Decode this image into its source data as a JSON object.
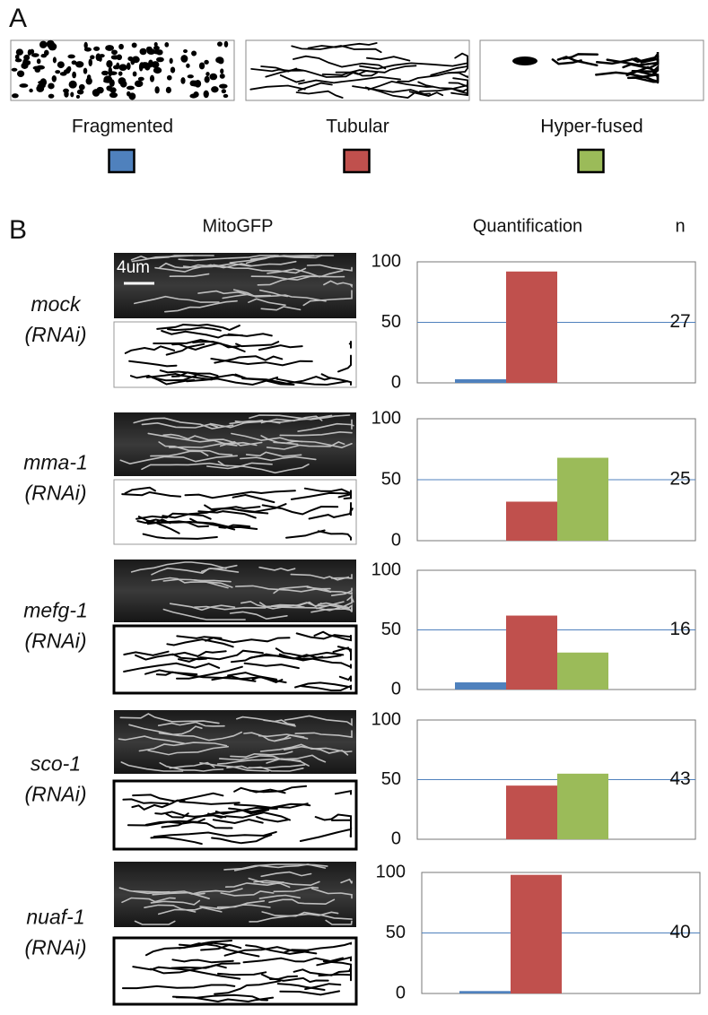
{
  "panel_labels": [
    "A",
    "B"
  ],
  "legend": [
    {
      "name": "Fragmented",
      "color": "#4f81bd"
    },
    {
      "name": "Tubular",
      "color": "#c0504d"
    },
    {
      "name": "Hyper-fused",
      "color": "#9bbb59"
    }
  ],
  "column_headers": [
    "MitoGFP",
    "Quantification",
    "n"
  ],
  "scale_bar": "4um",
  "chart_data": [
    {
      "type": "bar",
      "label": [
        "mock",
        "(RNAi)"
      ],
      "n": 27,
      "values": [
        3,
        92,
        0
      ],
      "ylim": [
        0,
        100
      ],
      "yticks": [
        0,
        50,
        100
      ],
      "grid": true
    },
    {
      "type": "bar",
      "label": [
        "mma-1",
        "(RNAi)"
      ],
      "n": 25,
      "values": [
        0,
        32,
        68
      ],
      "ylim": [
        0,
        100
      ],
      "yticks": [
        0,
        50,
        100
      ],
      "grid": true
    },
    {
      "type": "bar",
      "label": [
        "mefg-1",
        "(RNAi)"
      ],
      "n": 16,
      "values": [
        6,
        62,
        31
      ],
      "ylim": [
        0,
        100
      ],
      "yticks": [
        0,
        50,
        100
      ],
      "grid": true
    },
    {
      "type": "bar",
      "label": [
        "sco-1",
        "(RNAi)"
      ],
      "n": 43,
      "values": [
        0,
        45,
        55
      ],
      "ylim": [
        0,
        100
      ],
      "yticks": [
        0,
        50,
        100
      ],
      "grid": true
    },
    {
      "type": "bar",
      "label": [
        "nuaf-1",
        "(RNAi)"
      ],
      "n": 40,
      "values": [
        2,
        98,
        0
      ],
      "ylim": [
        0,
        100
      ],
      "yticks": [
        0,
        50,
        100
      ],
      "grid": true
    }
  ]
}
